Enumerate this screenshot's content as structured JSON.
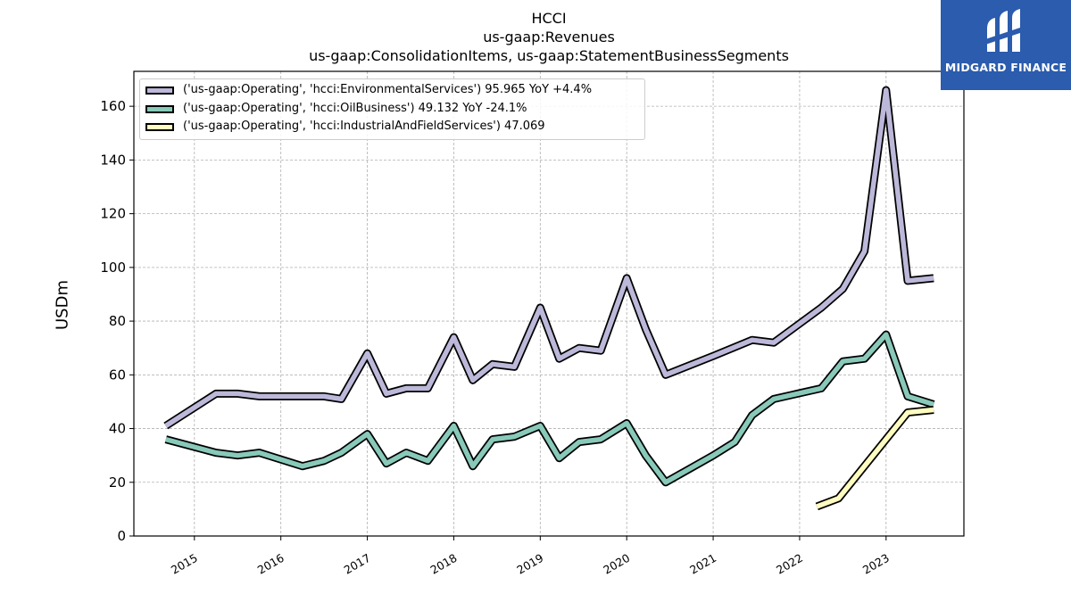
{
  "chart_data": {
    "type": "line",
    "title": "HCCI",
    "subtitle_lines": [
      "us-gaap:Revenues",
      "us-gaap:ConsolidationItems, us-gaap:StatementBusinessSegments"
    ],
    "ylabel": "USDm",
    "xlabel": "",
    "ylim": [
      0,
      173
    ],
    "yticks": [
      0,
      20,
      40,
      60,
      80,
      100,
      120,
      140,
      160
    ],
    "xlim": [
      2014.3,
      2023.9
    ],
    "xticks": [
      2015,
      2016,
      2017,
      2018,
      2019,
      2020,
      2021,
      2022,
      2023
    ],
    "grid": true,
    "legend_position": "top-left",
    "series": [
      {
        "name": "('us-gaap:Operating', 'hcci:EnvironmentalServices') 95.965 YoY +4.4%",
        "color": "#bcb8d9",
        "points": [
          [
            2014.67,
            41
          ],
          [
            2015.25,
            53
          ],
          [
            2015.5,
            53
          ],
          [
            2015.75,
            52
          ],
          [
            2016.25,
            52
          ],
          [
            2016.5,
            52
          ],
          [
            2016.7,
            51
          ],
          [
            2017.0,
            68
          ],
          [
            2017.22,
            53
          ],
          [
            2017.45,
            55
          ],
          [
            2017.7,
            55
          ],
          [
            2018.0,
            74
          ],
          [
            2018.22,
            58
          ],
          [
            2018.45,
            64
          ],
          [
            2018.7,
            63
          ],
          [
            2019.0,
            85
          ],
          [
            2019.22,
            66
          ],
          [
            2019.45,
            70
          ],
          [
            2019.7,
            69
          ],
          [
            2020.0,
            96
          ],
          [
            2020.22,
            77
          ],
          [
            2020.45,
            60
          ],
          [
            2021.0,
            67
          ],
          [
            2021.45,
            73
          ],
          [
            2021.7,
            72
          ],
          [
            2022.25,
            85
          ],
          [
            2022.5,
            92
          ],
          [
            2022.75,
            106
          ],
          [
            2023.0,
            166
          ],
          [
            2023.25,
            95
          ],
          [
            2023.55,
            96
          ]
        ]
      },
      {
        "name": "('us-gaap:Operating', 'hcci:OilBusiness') 49.132 YoY -24.1%",
        "color": "#88c9b9",
        "points": [
          [
            2014.67,
            36
          ],
          [
            2015.25,
            31
          ],
          [
            2015.5,
            30
          ],
          [
            2015.75,
            31
          ],
          [
            2016.25,
            26
          ],
          [
            2016.5,
            28
          ],
          [
            2016.7,
            31
          ],
          [
            2017.0,
            38
          ],
          [
            2017.22,
            27
          ],
          [
            2017.45,
            31
          ],
          [
            2017.7,
            28
          ],
          [
            2018.0,
            41
          ],
          [
            2018.22,
            26
          ],
          [
            2018.45,
            36
          ],
          [
            2018.7,
            37
          ],
          [
            2019.0,
            41
          ],
          [
            2019.22,
            29
          ],
          [
            2019.45,
            35
          ],
          [
            2019.7,
            36
          ],
          [
            2020.0,
            42
          ],
          [
            2020.22,
            30
          ],
          [
            2020.45,
            20
          ],
          [
            2021.0,
            30
          ],
          [
            2021.25,
            35
          ],
          [
            2021.45,
            45
          ],
          [
            2021.7,
            51
          ],
          [
            2022.25,
            55
          ],
          [
            2022.5,
            65
          ],
          [
            2022.75,
            66
          ],
          [
            2023.0,
            75
          ],
          [
            2023.25,
            52
          ],
          [
            2023.55,
            49
          ]
        ]
      },
      {
        "name": "('us-gaap:Operating', 'hcci:IndustrialAndFieldServices') 47.069",
        "color": "#fefcbf",
        "points": [
          [
            2022.2,
            11
          ],
          [
            2022.45,
            14
          ],
          [
            2023.25,
            46
          ],
          [
            2023.55,
            47
          ]
        ]
      }
    ]
  },
  "logo": {
    "text": "MIDGARD FINANCE",
    "background": "#2b5cad"
  }
}
